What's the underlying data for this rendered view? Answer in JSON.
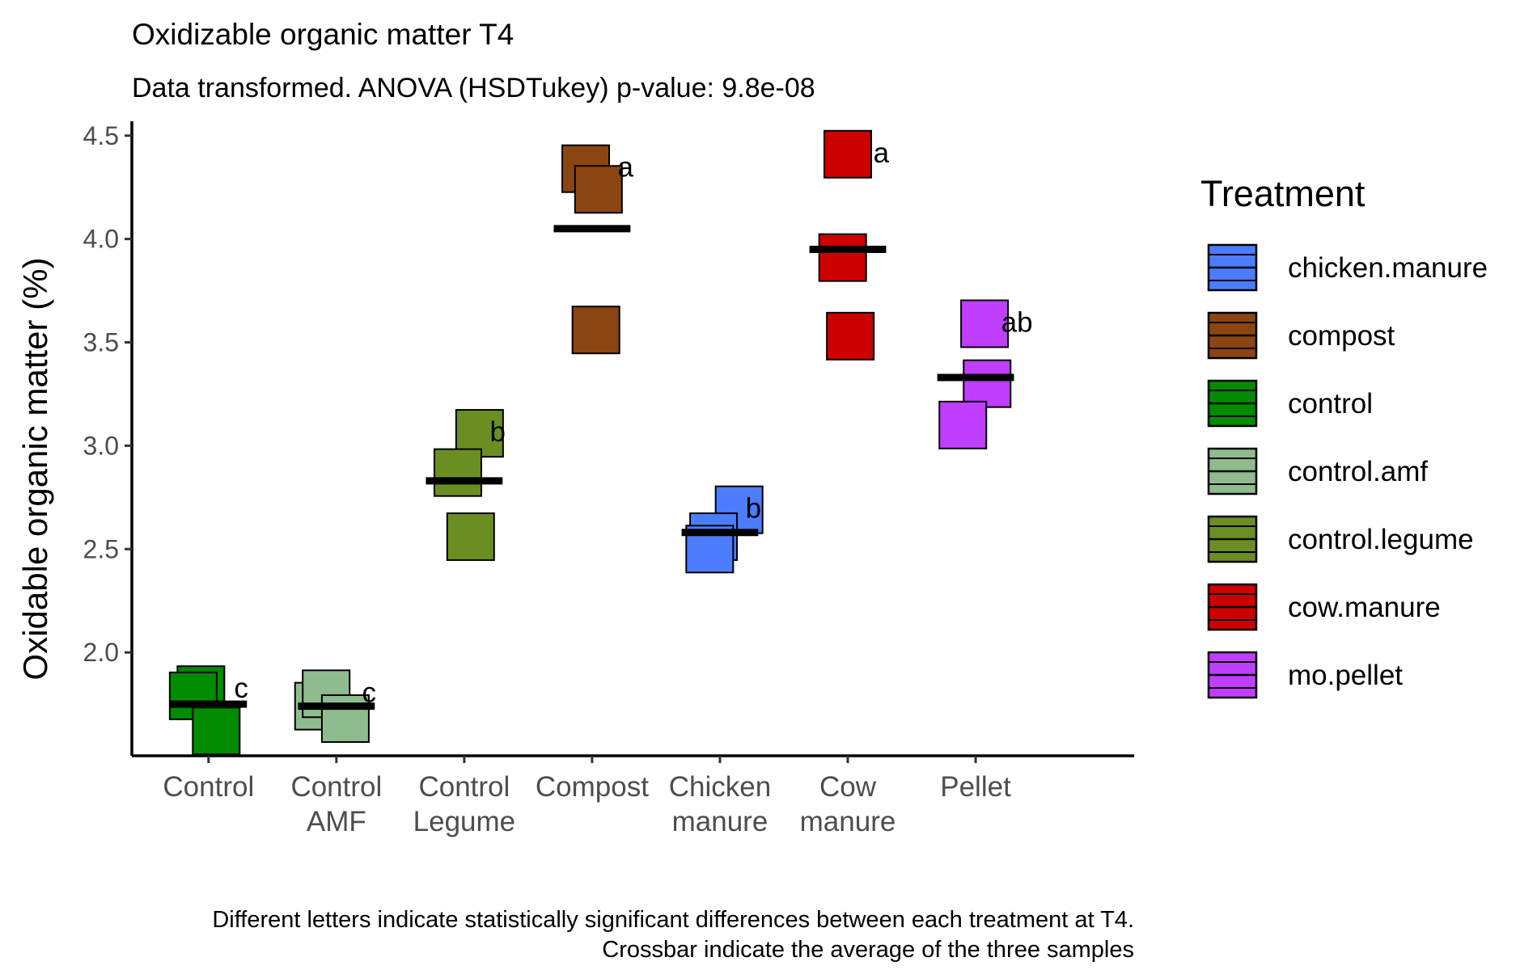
{
  "chart_data": {
    "type": "scatter",
    "title": "Oxidizable organic matter T4",
    "subtitle": "Data transformed. ANOVA (HSDTukey) p-value: 9.8e-08",
    "xlabel": "",
    "ylabel": "Oxidable organic matter (%)",
    "ylim": [
      1.5,
      4.55
    ],
    "yticks": [
      "2.0",
      "2.5",
      "3.0",
      "3.5",
      "4.0",
      "4.5"
    ],
    "legend_position": "right",
    "legend_title": "Treatment",
    "grid": false,
    "categories": [
      {
        "label": [
          "Control"
        ],
        "treatment": "control",
        "color": "#008B00",
        "points": [
          1.82,
          1.79,
          1.62
        ],
        "mean": 1.75,
        "letter": "c"
      },
      {
        "label": [
          "Control",
          "AMF"
        ],
        "treatment": "control.amf",
        "color": "#8FBC8F",
        "points": [
          1.74,
          1.8,
          1.68
        ],
        "mean": 1.74,
        "letter": "c"
      },
      {
        "label": [
          "Control",
          "Legume"
        ],
        "treatment": "control.legume",
        "color": "#6B8E23",
        "points": [
          3.06,
          2.87,
          2.56
        ],
        "mean": 2.83,
        "letter": "b"
      },
      {
        "label": [
          "Compost"
        ],
        "treatment": "compost",
        "color": "#8B4513",
        "points": [
          4.34,
          4.24,
          3.56
        ],
        "mean": 4.05,
        "letter": "a"
      },
      {
        "label": [
          "Chicken",
          "manure"
        ],
        "treatment": "chicken.manure",
        "color": "#4C7DFF",
        "points": [
          2.69,
          2.56,
          2.5
        ],
        "mean": 2.58,
        "letter": "b"
      },
      {
        "label": [
          "Cow",
          "manure"
        ],
        "treatment": "cow.manure",
        "color": "#CD0000",
        "points": [
          4.41,
          3.91,
          3.53
        ],
        "mean": 3.95,
        "letter": "a"
      },
      {
        "label": [
          "Pellet"
        ],
        "treatment": "mo.pellet",
        "color": "#BF3EFF",
        "points": [
          3.59,
          3.3,
          3.1
        ],
        "mean": 3.33,
        "letter": "ab"
      }
    ],
    "legend": [
      {
        "label": "chicken.manure",
        "color": "#4C7DFF"
      },
      {
        "label": "compost",
        "color": "#8B4513"
      },
      {
        "label": "control",
        "color": "#008B00"
      },
      {
        "label": "control.amf",
        "color": "#8FBC8F"
      },
      {
        "label": "control.legume",
        "color": "#6B8E23"
      },
      {
        "label": "cow.manure",
        "color": "#CD0000"
      },
      {
        "label": "mo.pellet",
        "color": "#BF3EFF"
      }
    ],
    "caption": [
      "Different letters indicate statistically significant differences between each treatment at T4.",
      "Crossbar indicate the average of the three samples"
    ]
  }
}
